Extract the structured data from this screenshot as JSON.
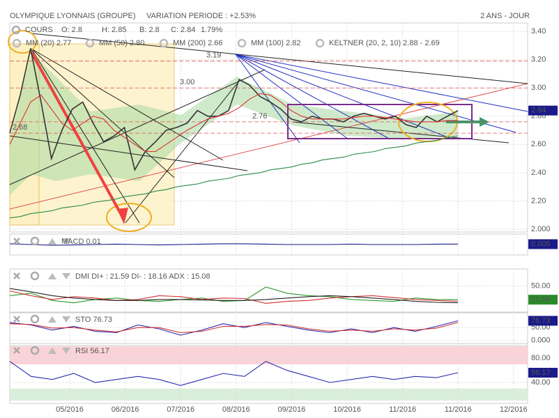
{
  "chart_data": {
    "type": "line",
    "title": "OLYMPIQUE LYONNAIS (GROUPE)",
    "subtitle": "VARIATION PERIODE : +2.53%",
    "period": "2 ANS - JOUR",
    "xticks": [
      "05/2016",
      "06/2016",
      "07/2016",
      "08/2016",
      "09/2016",
      "10/2016",
      "11/2016",
      "11/2016",
      "12/2016"
    ],
    "panels": [
      {
        "header": [
          "COURS",
          "O: 2.8",
          "H: 2.85",
          "B: 2.8",
          "C: 2.84",
          "1.79%"
        ],
        "legend": [
          {
            "label": "MM (20) 2.77",
            "color": "#e03030"
          },
          {
            "label": "MM (50) 2.80",
            "color": "#f0a030"
          },
          {
            "label": "MM (200) 2.66",
            "color": "#2a8a4a"
          },
          {
            "label": "MM (100) 2.82",
            "color": "#40b0c0"
          },
          {
            "label": "KELTNER (20, 2, 10) 2.88 - 2.69",
            "color": "#3a9a3a"
          }
        ],
        "levels": [
          3.19,
          {
            "value": 3,
            "label": "3.00"
          },
          2.76,
          2.68
        ],
        "ylim": [
          2.0,
          3.44
        ],
        "yticks": [
          {
            "value": 3.4,
            "label": "3.40"
          },
          {
            "value": 3.2,
            "label": "3.20"
          },
          {
            "value": 3,
            "label": "3.00"
          },
          {
            "value": 2.8,
            "label": "2.80"
          },
          {
            "value": 2.6,
            "label": "2.60"
          },
          {
            "value": 2.4,
            "label": "2.40"
          },
          {
            "value": 2.2,
            "label": "2.20"
          },
          {
            "value": 2,
            "label": "2.000"
          }
        ],
        "series": [
          {
            "name": "COURS",
            "color": "#333333",
            "values": [
              2.68,
              2.95,
              3.28,
              2.9,
              2.5,
              2.7,
              2.85,
              2.9,
              2.75,
              2.62,
              2.66,
              2.72,
              2.42,
              2.55,
              2.62,
              2.7,
              2.72,
              2.75,
              2.84,
              2.8,
              2.8,
              2.84,
              3.06,
              3.02,
              2.94,
              2.9,
              2.85,
              2.78,
              2.76,
              2.8,
              2.78,
              2.78,
              2.76,
              2.8,
              2.82,
              2.8,
              2.78,
              2.8,
              2.74,
              2.72,
              2.8,
              2.76,
              2.8,
              2.84
            ]
          },
          {
            "name": "MM (20)",
            "color": "#e03030",
            "values": [
              2.6,
              2.75,
              2.9,
              2.95,
              2.85,
              2.75,
              2.7,
              2.75,
              2.8,
              2.78,
              2.7,
              2.65,
              2.6,
              2.55,
              2.55,
              2.6,
              2.65,
              2.7,
              2.74,
              2.78,
              2.8,
              2.82,
              2.86,
              2.92,
              2.96,
              2.95,
              2.9,
              2.84,
              2.8,
              2.78,
              2.78,
              2.78,
              2.78,
              2.79,
              2.8,
              2.8,
              2.79,
              2.78,
              2.77,
              2.76,
              2.76,
              2.76,
              2.77,
              2.77
            ]
          },
          {
            "name": "MM (200)",
            "color": "#2a8a4a",
            "values": [
              2.08,
              2.09,
              2.11,
              2.12,
              2.13,
              2.15,
              2.16,
              2.17,
              2.19,
              2.2,
              2.21,
              2.23,
              2.24,
              2.25,
              2.27,
              2.28,
              2.3,
              2.31,
              2.32,
              2.34,
              2.35,
              2.36,
              2.38,
              2.39,
              2.4,
              2.42,
              2.43,
              2.44,
              2.46,
              2.47,
              2.49,
              2.5,
              2.51,
              2.53,
              2.54,
              2.55,
              2.57,
              2.58,
              2.59,
              2.61,
              2.62,
              2.63,
              2.65,
              2.66
            ]
          }
        ]
      },
      {
        "title": "MACD 0.01",
        "ylim": [
          -0.1,
          0.1
        ],
        "yticks": [],
        "series": [
          {
            "name": "MACD",
            "color": "#1a1a8a",
            "values": [
              0.01,
              0,
              -0.01,
              -0.005,
              0,
              0.005,
              0,
              -0.005,
              0,
              0.005,
              0.01,
              0.01,
              0.005,
              0,
              0,
              0,
              0.005,
              0,
              0,
              0,
              0.005,
              0.005
            ]
          }
        ]
      },
      {
        "title": "DMI DI+ : 21.59 DI- : 18.16 ADX : 15.08",
        "ylim": [
          0,
          80
        ],
        "yticks": [
          {
            "value": 50,
            "label": "50.00"
          }
        ],
        "series": [
          {
            "name": "DI+",
            "color": "#2a9a2a",
            "values": [
              30,
              35,
              20,
              15,
              22,
              25,
              20,
              18,
              22,
              25,
              18,
              20,
              48,
              35,
              30,
              28,
              22,
              20,
              18,
              25,
              22,
              21.59
            ]
          },
          {
            "name": "DI-",
            "color": "#d03030",
            "values": [
              40,
              30,
              22,
              28,
              25,
              20,
              22,
              30,
              28,
              22,
              25,
              24,
              14,
              18,
              20,
              25,
              28,
              30,
              26,
              22,
              20,
              18.16
            ]
          },
          {
            "name": "ADX",
            "color": "#222222",
            "values": [
              45,
              38,
              30,
              25,
              22,
              20,
              20,
              22,
              22,
              21,
              20,
              20,
              22,
              25,
              28,
              30,
              28,
              25,
              22,
              18,
              16,
              15.08
            ]
          }
        ]
      },
      {
        "title": "STO 76.73",
        "ylim": [
          -10,
          100
        ],
        "yticks": [
          {
            "value": 50,
            "label": "50.00"
          },
          {
            "value": 0,
            "label": "0.000"
          }
        ],
        "series": [
          {
            "name": "STO",
            "color": "#2a2ab0",
            "values": [
              70,
              60,
              40,
              55,
              35,
              30,
              60,
              45,
              20,
              40,
              65,
              50,
              70,
              55,
              40,
              30,
              45,
              30,
              50,
              35,
              55,
              76.73
            ]
          },
          {
            "name": "STO signal",
            "color": "#d03030",
            "values": [
              65,
              62,
              48,
              50,
              40,
              33,
              50,
              50,
              30,
              35,
              55,
              55,
              62,
              60,
              45,
              35,
              40,
              35,
              45,
              40,
              48,
              70
            ]
          }
        ]
      },
      {
        "title": "RSI 56.17",
        "ylim": [
          10,
          100
        ],
        "yticks": [
          {
            "value": 80,
            "label": "80.00"
          },
          {
            "value": 40,
            "label": "40.00"
          }
        ],
        "bands": [
          {
            "from": 70,
            "to": 100,
            "color": "#f9d3d7"
          },
          {
            "from": 10,
            "to": 30,
            "color": "#d9eedb"
          }
        ],
        "series": [
          {
            "name": "RSI",
            "color": "#2a2ab0",
            "values": [
              75,
              50,
              45,
              55,
              40,
              45,
              50,
              45,
              35,
              45,
              55,
              50,
              75,
              60,
              50,
              40,
              45,
              50,
              45,
              50,
              48,
              56.17
            ]
          }
        ]
      }
    ]
  }
}
